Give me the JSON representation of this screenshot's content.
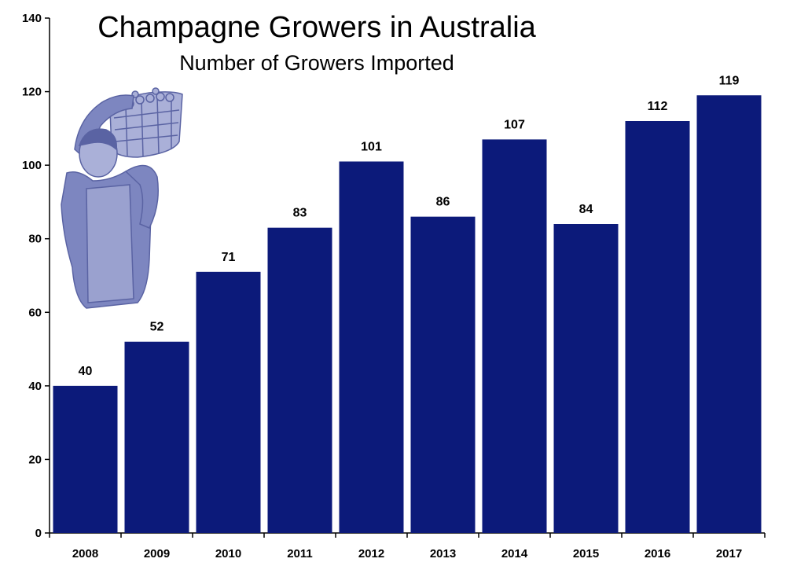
{
  "chart_data": {
    "type": "bar",
    "title": "Champagne Growers in Australia",
    "subtitle": "Number of Growers Imported",
    "categories": [
      "2008",
      "2009",
      "2010",
      "2011",
      "2012",
      "2013",
      "2014",
      "2015",
      "2016",
      "2017"
    ],
    "values": [
      40,
      52,
      71,
      83,
      101,
      86,
      107,
      84,
      112,
      119
    ],
    "data_labels": [
      "40",
      "52",
      "71",
      "83",
      "101",
      "86",
      "107",
      "84",
      "112",
      "119"
    ],
    "ylim": [
      0,
      140
    ],
    "yticks": [
      "0",
      "20",
      "40",
      "60",
      "80",
      "100",
      "120",
      "140"
    ],
    "xlabel": "",
    "ylabel": "",
    "grid": false,
    "legend": "none",
    "bar_color": "#0c1a7a",
    "illustration": "grape-picker-icon"
  }
}
